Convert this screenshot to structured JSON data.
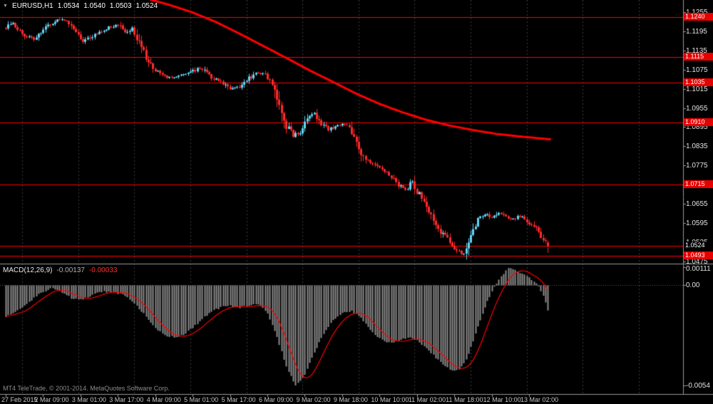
{
  "window": {
    "symbol_period": "EURUSD,H1",
    "ohlc": {
      "open": "1.0534",
      "high": "1.0540",
      "low": "1.0503",
      "close": "1.0524"
    }
  },
  "colors": {
    "background": "#000000",
    "bull_candle": "#63d6f5",
    "bear_candle": "#ff2a2a",
    "ma_line": "#ff0000",
    "sr_line": "#ff0000",
    "macd_histogram": "#8c8c8c",
    "macd_signal": "#ff0000",
    "grid": "#3c3c3c",
    "badge_red": "#e60000",
    "badge_current": "#000000"
  },
  "macd_panel": {
    "label": "MACD(12,26,9)",
    "value_main": "-0.00137",
    "value_signal": "-0.00033"
  },
  "footer": {
    "copyright": "MT4 TeleTrade, © 2001-2014. MetaQuotes Software Corp."
  },
  "price_axis": {
    "ticks": [
      "1.1255",
      "1.1195",
      "1.1135",
      "1.1075",
      "1.1015",
      "1.0955",
      "1.0895",
      "1.0835",
      "1.0775",
      "1.0715",
      "1.0655",
      "1.0595",
      "1.0535",
      "1.0475"
    ],
    "sr_badges": [
      "1.1240",
      "1.1115",
      "1.1035",
      "1.0910",
      "1.0715",
      "1.0493"
    ],
    "current_badge": "1.0524"
  },
  "macd_axis": {
    "ticks": [
      {
        "label": "0.00111",
        "value": 0.00111
      },
      {
        "label": "0.00",
        "value": 0
      },
      {
        "label": "-0.0054",
        "value": -0.0054
      }
    ]
  },
  "time_axis": {
    "labels": [
      {
        "i": 0,
        "text": "27 Feb 2015"
      },
      {
        "i": 16,
        "text": "2 Mar 09:00"
      },
      {
        "i": 32,
        "text": "3 Mar 01:00"
      },
      {
        "i": 48,
        "text": "3 Mar 17:00"
      },
      {
        "i": 64,
        "text": "4 Mar 09:00"
      },
      {
        "i": 80,
        "text": "5 Mar 01:00"
      },
      {
        "i": 96,
        "text": "5 Mar 17:00"
      },
      {
        "i": 112,
        "text": "6 Mar 09:00"
      },
      {
        "i": 128,
        "text": "9 Mar 02:00"
      },
      {
        "i": 144,
        "text": "9 Mar 18:00"
      },
      {
        "i": 160,
        "text": "10 Mar 10:00"
      },
      {
        "i": 176,
        "text": "11 Mar 02:00"
      },
      {
        "i": 192,
        "text": "11 Mar 18:00"
      },
      {
        "i": 208,
        "text": "12 Mar 10:00"
      },
      {
        "i": 224,
        "text": "13 Mar 02:00"
      }
    ]
  },
  "chart_data": {
    "type": "candlestick",
    "symbol": "EURUSD",
    "timeframe": "H1",
    "title": "EURUSD,H1 1.0534 1.0540 1.0503 1.0524",
    "candle_count": 233,
    "last_candle": {
      "open": 1.0534,
      "high": 1.054,
      "low": 1.0503,
      "close": 1.0524
    },
    "price_axis_range": {
      "top": 1.1293,
      "bottom": 1.0468
    },
    "sr_levels": [
      1.124,
      1.1115,
      1.1035,
      1.091,
      1.0715,
      1.0493
    ],
    "current_price": 1.0524,
    "separator_start_index": 7,
    "separators_every_candles": 24,
    "close_waypoints": [
      [
        0,
        1.1205
      ],
      [
        3,
        1.1222
      ],
      [
        6,
        1.1198
      ],
      [
        9,
        1.1178
      ],
      [
        12,
        1.117
      ],
      [
        15,
        1.1196
      ],
      [
        18,
        1.1212
      ],
      [
        22,
        1.1228
      ],
      [
        25,
        1.1232
      ],
      [
        28,
        1.1215
      ],
      [
        31,
        1.1185
      ],
      [
        33,
        1.1166
      ],
      [
        36,
        1.1175
      ],
      [
        40,
        1.1192
      ],
      [
        44,
        1.1208
      ],
      [
        48,
        1.1216
      ],
      [
        51,
        1.1192
      ],
      [
        54,
        1.1204
      ],
      [
        57,
        1.116
      ],
      [
        60,
        1.111
      ],
      [
        63,
        1.108
      ],
      [
        66,
        1.1062
      ],
      [
        70,
        1.105
      ],
      [
        74,
        1.1056
      ],
      [
        78,
        1.1062
      ],
      [
        82,
        1.1078
      ],
      [
        85,
        1.1072
      ],
      [
        88,
        1.105
      ],
      [
        92,
        1.1038
      ],
      [
        96,
        1.1014
      ],
      [
        100,
        1.1022
      ],
      [
        104,
        1.1048
      ],
      [
        108,
        1.1066
      ],
      [
        111,
        1.1062
      ],
      [
        114,
        1.103
      ],
      [
        117,
        1.0968
      ],
      [
        120,
        1.09
      ],
      [
        123,
        1.0868
      ],
      [
        126,
        1.0882
      ],
      [
        129,
        1.092
      ],
      [
        132,
        1.0938
      ],
      [
        135,
        1.0906
      ],
      [
        138,
        1.0886
      ],
      [
        141,
        1.0898
      ],
      [
        144,
        1.0906
      ],
      [
        147,
        1.0898
      ],
      [
        150,
        1.0852
      ],
      [
        153,
        1.0804
      ],
      [
        156,
        1.0782
      ],
      [
        159,
        1.077
      ],
      [
        162,
        1.076
      ],
      [
        165,
        1.0738
      ],
      [
        168,
        1.0712
      ],
      [
        171,
        1.0698
      ],
      [
        174,
        1.0726
      ],
      [
        177,
        1.068
      ],
      [
        180,
        1.0636
      ],
      [
        183,
        1.0602
      ],
      [
        186,
        1.0568
      ],
      [
        189,
        1.0548
      ],
      [
        192,
        1.0516
      ],
      [
        195,
        1.05
      ],
      [
        197,
        1.0505
      ],
      [
        199,
        1.056
      ],
      [
        202,
        1.0608
      ],
      [
        205,
        1.0622
      ],
      [
        208,
        1.0612
      ],
      [
        211,
        1.0626
      ],
      [
        214,
        1.0616
      ],
      [
        217,
        1.0608
      ],
      [
        220,
        1.0618
      ],
      [
        223,
        1.0598
      ],
      [
        226,
        1.0588
      ],
      [
        229,
        1.0556
      ],
      [
        232,
        1.0524
      ]
    ],
    "ma_line": {
      "name": "moving-average",
      "width": 3,
      "waypoints": [
        [
          62,
          1.1294
        ],
        [
          70,
          1.1278
        ],
        [
          80,
          1.1254
        ],
        [
          90,
          1.1224
        ],
        [
          100,
          1.1188
        ],
        [
          110,
          1.115
        ],
        [
          120,
          1.1112
        ],
        [
          130,
          1.1073
        ],
        [
          140,
          1.1037
        ],
        [
          150,
          1.1
        ],
        [
          160,
          1.0968
        ],
        [
          170,
          1.0941
        ],
        [
          180,
          1.0918
        ],
        [
          190,
          1.09
        ],
        [
          200,
          1.0886
        ],
        [
          210,
          1.0874
        ],
        [
          220,
          1.0866
        ],
        [
          233,
          1.0857
        ]
      ]
    },
    "macd": {
      "label": "MACD(12,26,9)",
      "value_main": -0.00137,
      "value_signal": -0.00033,
      "axis_range": {
        "top": 0.00111,
        "bottom": -0.00586
      },
      "waypoints": [
        [
          0,
          -0.0017
        ],
        [
          5,
          -0.0014
        ],
        [
          10,
          -0.0009
        ],
        [
          15,
          -0.0004
        ],
        [
          20,
          -0.00015
        ],
        [
          24,
          -0.0004
        ],
        [
          28,
          -0.0007
        ],
        [
          32,
          -0.0008
        ],
        [
          36,
          -0.0006
        ],
        [
          40,
          -0.00035
        ],
        [
          45,
          -0.0004
        ],
        [
          50,
          -0.0005
        ],
        [
          55,
          -0.001
        ],
        [
          60,
          -0.0017
        ],
        [
          64,
          -0.0023
        ],
        [
          68,
          -0.0027
        ],
        [
          72,
          -0.0028
        ],
        [
          76,
          -0.0027
        ],
        [
          80,
          -0.0023
        ],
        [
          85,
          -0.0017
        ],
        [
          90,
          -0.0013
        ],
        [
          95,
          -0.0011
        ],
        [
          100,
          -0.0012
        ],
        [
          104,
          -0.0011
        ],
        [
          108,
          -0.001
        ],
        [
          112,
          -0.0015
        ],
        [
          116,
          -0.0028
        ],
        [
          120,
          -0.0044
        ],
        [
          124,
          -0.0054
        ],
        [
          128,
          -0.0048
        ],
        [
          132,
          -0.0036
        ],
        [
          136,
          -0.0026
        ],
        [
          140,
          -0.0019
        ],
        [
          144,
          -0.0015
        ],
        [
          148,
          -0.0014
        ],
        [
          152,
          -0.0018
        ],
        [
          156,
          -0.0024
        ],
        [
          160,
          -0.0029
        ],
        [
          164,
          -0.0031
        ],
        [
          168,
          -0.003
        ],
        [
          172,
          -0.0028
        ],
        [
          176,
          -0.003
        ],
        [
          180,
          -0.0034
        ],
        [
          184,
          -0.0039
        ],
        [
          188,
          -0.0044
        ],
        [
          191,
          -0.0046
        ],
        [
          194,
          -0.0045
        ],
        [
          197,
          -0.004
        ],
        [
          200,
          -0.003
        ],
        [
          203,
          -0.0019
        ],
        [
          206,
          -0.0009
        ],
        [
          209,
          -0.0001
        ],
        [
          212,
          0.0005
        ],
        [
          215,
          0.0009
        ],
        [
          218,
          0.0008
        ],
        [
          221,
          0.0006
        ],
        [
          224,
          0.0004
        ],
        [
          227,
          0.0001
        ],
        [
          229,
          -0.0003
        ],
        [
          231,
          -0.0009
        ],
        [
          232,
          -0.00137
        ]
      ]
    }
  }
}
